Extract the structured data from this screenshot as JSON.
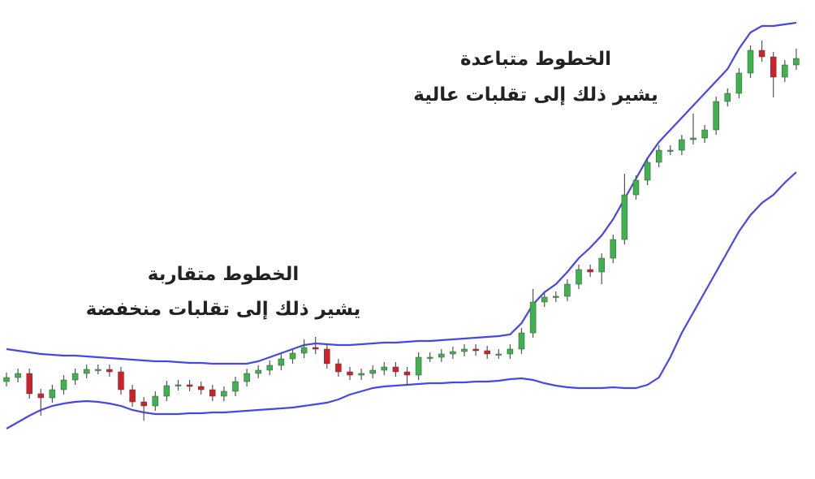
{
  "chart_data": {
    "type": "candlestick",
    "ylim": [
      0,
      590
    ],
    "up_color": "#3cb44b",
    "down_color": "#d0202a",
    "wick_color": "#555555",
    "annotations": [
      "الخطوط متباعدة",
      "يشير ذلك إلى تقلبات عالية",
      "الخطوط متقاربة",
      "يشير ذلك إلى تقلبات منخفضة"
    ],
    "open": [
      120,
      125,
      130,
      105,
      100,
      110,
      122,
      130,
      135,
      135,
      132,
      110,
      95,
      90,
      102,
      115,
      116,
      114,
      110,
      102,
      108,
      120,
      130,
      134,
      140,
      148,
      155,
      162,
      160,
      142,
      132,
      128,
      130,
      134,
      138,
      132,
      128,
      150,
      150,
      154,
      157,
      160,
      158,
      154,
      154,
      160,
      180,
      218,
      224,
      225,
      240,
      258,
      255,
      272,
      295,
      350,
      368,
      390,
      405,
      405,
      418,
      420,
      430,
      465,
      475,
      500,
      528,
      520,
      495,
      510
    ],
    "close": [
      125,
      130,
      105,
      100,
      110,
      122,
      130,
      135,
      135,
      132,
      110,
      95,
      90,
      102,
      115,
      116,
      114,
      110,
      102,
      108,
      120,
      130,
      134,
      140,
      148,
      155,
      162,
      160,
      142,
      132,
      128,
      130,
      134,
      138,
      132,
      128,
      150,
      150,
      154,
      157,
      160,
      158,
      154,
      154,
      160,
      180,
      218,
      224,
      225,
      240,
      258,
      255,
      272,
      295,
      350,
      368,
      390,
      405,
      405,
      418,
      420,
      430,
      465,
      475,
      500,
      528,
      520,
      495,
      510,
      518
    ],
    "high": [
      131,
      136,
      136,
      111,
      116,
      128,
      136,
      141,
      141,
      141,
      138,
      116,
      101,
      108,
      121,
      122,
      122,
      120,
      116,
      114,
      126,
      136,
      140,
      146,
      154,
      161,
      172,
      175,
      166,
      148,
      138,
      136,
      140,
      144,
      144,
      138,
      156,
      156,
      160,
      163,
      166,
      166,
      164,
      160,
      166,
      186,
      234,
      230,
      231,
      246,
      264,
      264,
      278,
      301,
      376,
      374,
      396,
      411,
      411,
      424,
      450,
      436,
      471,
      481,
      506,
      534,
      540,
      526,
      516,
      530
    ],
    "low": [
      114,
      119,
      99,
      78,
      94,
      104,
      116,
      124,
      129,
      126,
      104,
      89,
      72,
      84,
      96,
      109,
      108,
      104,
      96,
      96,
      102,
      114,
      124,
      128,
      134,
      142,
      149,
      154,
      136,
      126,
      122,
      122,
      124,
      128,
      126,
      115,
      122,
      144,
      144,
      148,
      151,
      152,
      148,
      148,
      148,
      154,
      174,
      212,
      218,
      219,
      234,
      249,
      240,
      266,
      289,
      344,
      362,
      384,
      399,
      399,
      412,
      414,
      424,
      459,
      469,
      494,
      514,
      470,
      489,
      504
    ],
    "bands": [
      {
        "color": "#4747e6",
        "values": [
          160,
          158,
          156,
          154,
          153,
          152,
          152,
          151,
          150,
          149,
          148,
          147,
          146,
          145,
          145,
          144,
          143,
          143,
          142,
          142,
          142,
          142,
          145,
          150,
          155,
          160,
          165,
          167,
          166,
          165,
          165,
          166,
          167,
          168,
          168,
          169,
          170,
          170,
          171,
          172,
          173,
          174,
          175,
          176,
          178,
          192,
          215,
          230,
          240,
          255,
          272,
          285,
          300,
          320,
          345,
          370,
          395,
          415,
          430,
          445,
          460,
          475,
          490,
          505,
          530,
          550,
          558,
          558,
          560,
          562
        ]
      },
      {
        "color": "#4747e6",
        "values": [
          62,
          70,
          78,
          85,
          90,
          93,
          95,
          96,
          95,
          93,
          90,
          85,
          82,
          80,
          80,
          80,
          81,
          81,
          82,
          82,
          83,
          84,
          85,
          86,
          87,
          88,
          90,
          92,
          94,
          98,
          104,
          108,
          112,
          114,
          115,
          116,
          117,
          118,
          118,
          119,
          119,
          120,
          120,
          121,
          123,
          124,
          122,
          118,
          115,
          113,
          112,
          112,
          112,
          113,
          112,
          112,
          116,
          125,
          150,
          180,
          205,
          230,
          255,
          280,
          305,
          325,
          340,
          350,
          365,
          378
        ]
      }
    ]
  }
}
